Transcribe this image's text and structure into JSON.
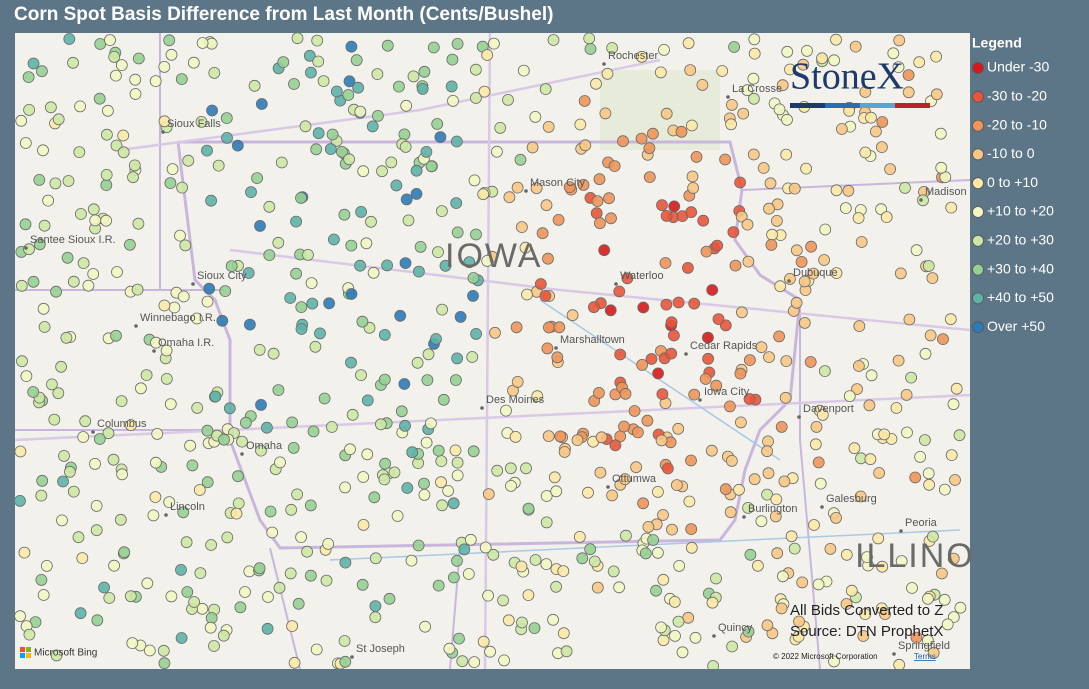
{
  "title": "Corn Spot Basis Difference from Last Month (Cents/Bushel)",
  "legend": {
    "title": "Legend",
    "items": [
      {
        "label": "Under -30",
        "color": "#d7191c"
      },
      {
        "label": "-30 to -20",
        "color": "#e8553a"
      },
      {
        "label": "-20 to -10",
        "color": "#f0955a"
      },
      {
        "label": "-10 to 0",
        "color": "#f8c785"
      },
      {
        "label": "0 to +10",
        "color": "#fce9a6"
      },
      {
        "label": "+10 to +20",
        "color": "#f3f6c2"
      },
      {
        "label": "+20 to +30",
        "color": "#cde8a4"
      },
      {
        "label": "+30 to +40",
        "color": "#96d094"
      },
      {
        "label": "+40 to +50",
        "color": "#5db3a8"
      },
      {
        "label": "Over +50",
        "color": "#2c7bb8"
      }
    ]
  },
  "logo": "StoneX",
  "states": [
    "IOWA",
    "ILLINO"
  ],
  "cities": [
    "Rochester",
    "La Crosse",
    "Sioux Falls",
    "Mason City",
    "Waterloo",
    "Dubuque",
    "Sioux City",
    "Marshalltown",
    "Cedar Rapids",
    "Des Moines",
    "Iowa City",
    "Davenport",
    "Omaha",
    "Columbus",
    "Ottumwa",
    "Lincoln",
    "Burlington",
    "Galesburg",
    "Peoria",
    "St Joseph",
    "Springfield",
    "Winnebago I.R.",
    "Omaha I.R.",
    "Santee Sioux I.R.",
    "Quincy",
    "Madison"
  ],
  "notes": [
    "All Bids Converted to Z",
    "Source: DTN ProphetX"
  ],
  "attribution": {
    "brand": "Microsoft Bing",
    "copyright": "© 2022 Microsoft Corporation",
    "terms": "Terms"
  }
}
